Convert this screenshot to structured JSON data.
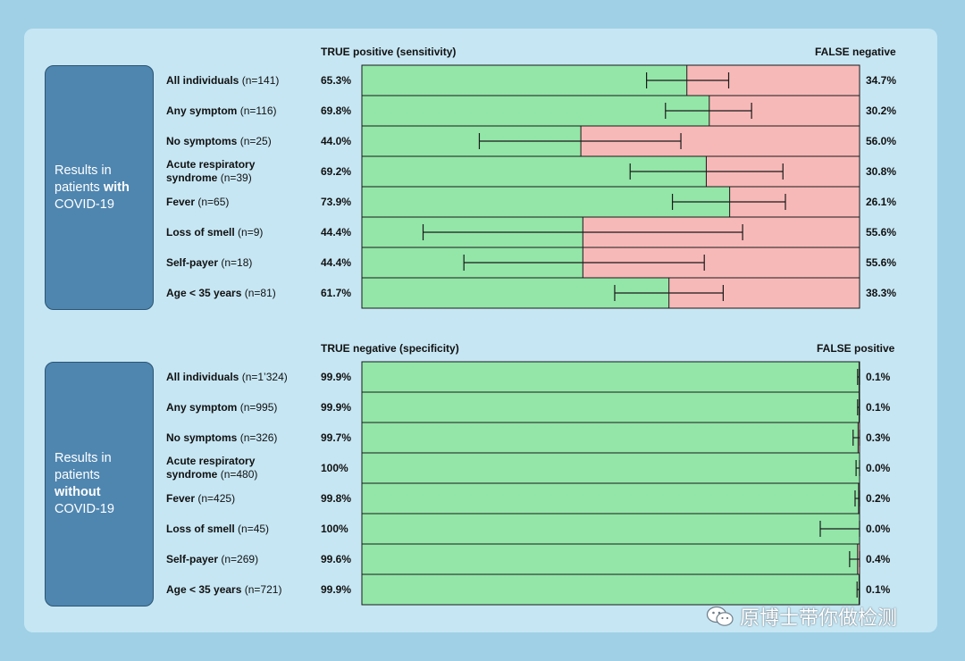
{
  "chart_data": [
    {
      "type": "bar",
      "stacked": true,
      "orientation": "horizontal",
      "group_label_parts": [
        "Results in",
        "patients ",
        "with",
        "COVID-19"
      ],
      "left_header": "TRUE positive (sensitivity)",
      "right_header": "FALSE negative",
      "colors": {
        "left": "#93e6a8",
        "right": "#f7b9b8"
      },
      "xlim": [
        0,
        100
      ],
      "rows": [
        {
          "name": "All individuals",
          "n": "(n=141)",
          "left_label": "65.3%",
          "right_label": "34.7%",
          "value": 65.3,
          "ci": [
            57.2,
            73.7
          ]
        },
        {
          "name": "Any symptom",
          "n": "(n=116)",
          "left_label": "69.8%",
          "right_label": "30.2%",
          "value": 69.8,
          "ci": [
            61.0,
            78.3
          ]
        },
        {
          "name": "No symptoms",
          "n": "(n=25)",
          "left_label": "44.0%",
          "right_label": "56.0%",
          "value": 44.0,
          "ci": [
            23.6,
            64.1
          ]
        },
        {
          "name": "Acute respiratory syndrome",
          "n": "(n=39)",
          "left_label": "69.2%",
          "right_label": "30.8%",
          "value": 69.2,
          "ci": [
            53.9,
            84.6
          ]
        },
        {
          "name": "Fever",
          "n": "(n=65)",
          "left_label": "73.9%",
          "right_label": "26.1%",
          "value": 73.9,
          "ci": [
            62.4,
            85.1
          ]
        },
        {
          "name": "Loss of smell",
          "n": "(n=9)",
          "left_label": "44.4%",
          "right_label": "55.6%",
          "value": 44.4,
          "ci": [
            12.3,
            76.5
          ]
        },
        {
          "name": "Self-payer",
          "n": "(n=18)",
          "left_label": "44.4%",
          "right_label": "55.6%",
          "value": 44.4,
          "ci": [
            20.5,
            68.8
          ]
        },
        {
          "name": "Age < 35 years",
          "n": "(n=81)",
          "left_label": "61.7%",
          "right_label": "38.3%",
          "value": 61.7,
          "ci": [
            50.8,
            72.6
          ]
        }
      ]
    },
    {
      "type": "bar",
      "stacked": true,
      "orientation": "horizontal",
      "group_label_parts": [
        "Results in",
        "patients",
        "without",
        "COVID-19"
      ],
      "left_header": "TRUE negative (specificity)",
      "right_header": "FALSE positive",
      "colors": {
        "left": "#93e6a8",
        "right": "#f7b9b8"
      },
      "xlim": [
        0,
        100
      ],
      "rows": [
        {
          "name": "All individuals",
          "n": "(n=1’324)",
          "left_label": "99.9%",
          "right_label": "0.1%",
          "value": 99.9,
          "ci": [
            99.6,
            100
          ]
        },
        {
          "name": "Any symptom",
          "n": "(n=995)",
          "left_label": "99.9%",
          "right_label": "0.1%",
          "value": 99.9,
          "ci": [
            99.6,
            100
          ]
        },
        {
          "name": "No symptoms",
          "n": "(n=326)",
          "left_label": "99.7%",
          "right_label": "0.3%",
          "value": 99.7,
          "ci": [
            98.7,
            100
          ]
        },
        {
          "name": "Acute respiratory syndrome",
          "n": "(n=480)",
          "left_label": "100%",
          "right_label": "0.0%",
          "value": 100,
          "ci": [
            99.3,
            100
          ]
        },
        {
          "name": "Fever",
          "n": "(n=425)",
          "left_label": "99.8%",
          "right_label": "0.2%",
          "value": 99.8,
          "ci": [
            99.1,
            100
          ]
        },
        {
          "name": "Loss of smell",
          "n": "(n=45)",
          "left_label": "100%",
          "right_label": "0.0%",
          "value": 100,
          "ci": [
            92.1,
            100
          ]
        },
        {
          "name": "Self-payer",
          "n": "(n=269)",
          "left_label": "99.6%",
          "right_label": "0.4%",
          "value": 99.6,
          "ci": [
            98.0,
            100
          ]
        },
        {
          "name": "Age < 35 years",
          "n": "(n=721)",
          "left_label": "99.9%",
          "right_label": "0.1%",
          "value": 99.9,
          "ci": [
            99.5,
            100
          ]
        }
      ]
    }
  ],
  "watermark": {
    "text": "原博士带你做检测",
    "icon": "wechat-icon"
  }
}
